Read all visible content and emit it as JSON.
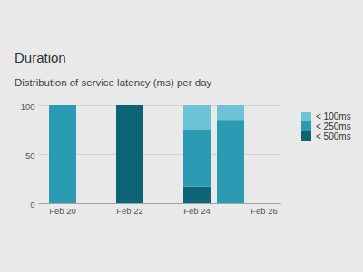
{
  "chart_data": {
    "type": "bar",
    "title": "Duration",
    "subtitle": "Distribution of service latency (ms) per day",
    "categories": [
      "Feb 20",
      null,
      "Feb 22",
      null,
      "Feb 24",
      null,
      "Feb 26"
    ],
    "series": [
      {
        "name": "< 100ms",
        "color": "#6cc3d5",
        "values": [
          0,
          0,
          0,
          0,
          25,
          15,
          0
        ]
      },
      {
        "name": "< 250ms",
        "color": "#2b9ab3",
        "values": [
          100,
          0,
          0,
          0,
          58,
          85,
          0
        ]
      },
      {
        "name": "< 500ms",
        "color": "#0d6475",
        "values": [
          0,
          0,
          100,
          0,
          17,
          0,
          0
        ]
      }
    ],
    "stacked": true,
    "ylim": [
      0,
      100
    ],
    "yticks": [
      0,
      50,
      100
    ],
    "grid": true,
    "legend": "right"
  }
}
